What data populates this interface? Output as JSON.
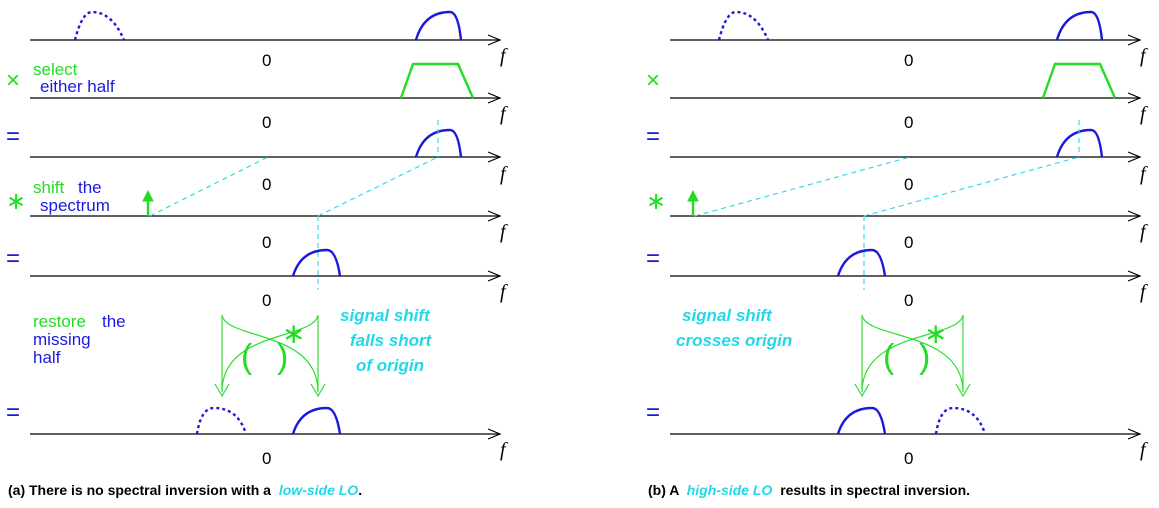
{
  "axis_labels": {
    "zero": "0",
    "f": "f"
  },
  "operators": {
    "times": "×",
    "equals": "=",
    "convolve": "∗",
    "paren_open": "(",
    "paren_close": ")"
  },
  "colors": {
    "signal": "#1a1adc",
    "operation": "#22dd22",
    "annotation": "#22d8e8",
    "axis": "#000000"
  },
  "panel_a": {
    "label_select": "select",
    "label_either_half": "either half",
    "label_shift": "shift",
    "label_the": "the",
    "label_spectrum": "spectrum",
    "label_restore": "restore",
    "label_the2": "the",
    "label_missing": "missing",
    "label_half": "half",
    "note_line1": "signal shift",
    "note_line2": "falls short",
    "note_line3": "of origin",
    "caption_pre": "(a)  There is no spectral inversion with a",
    "caption_em": "low-side LO",
    "caption_post": "."
  },
  "panel_b": {
    "note_line1": "signal shift",
    "note_line2": "crosses origin",
    "caption_pre": "(b)  A",
    "caption_em": "high-side LO",
    "caption_post": "results in spectral inversion."
  }
}
